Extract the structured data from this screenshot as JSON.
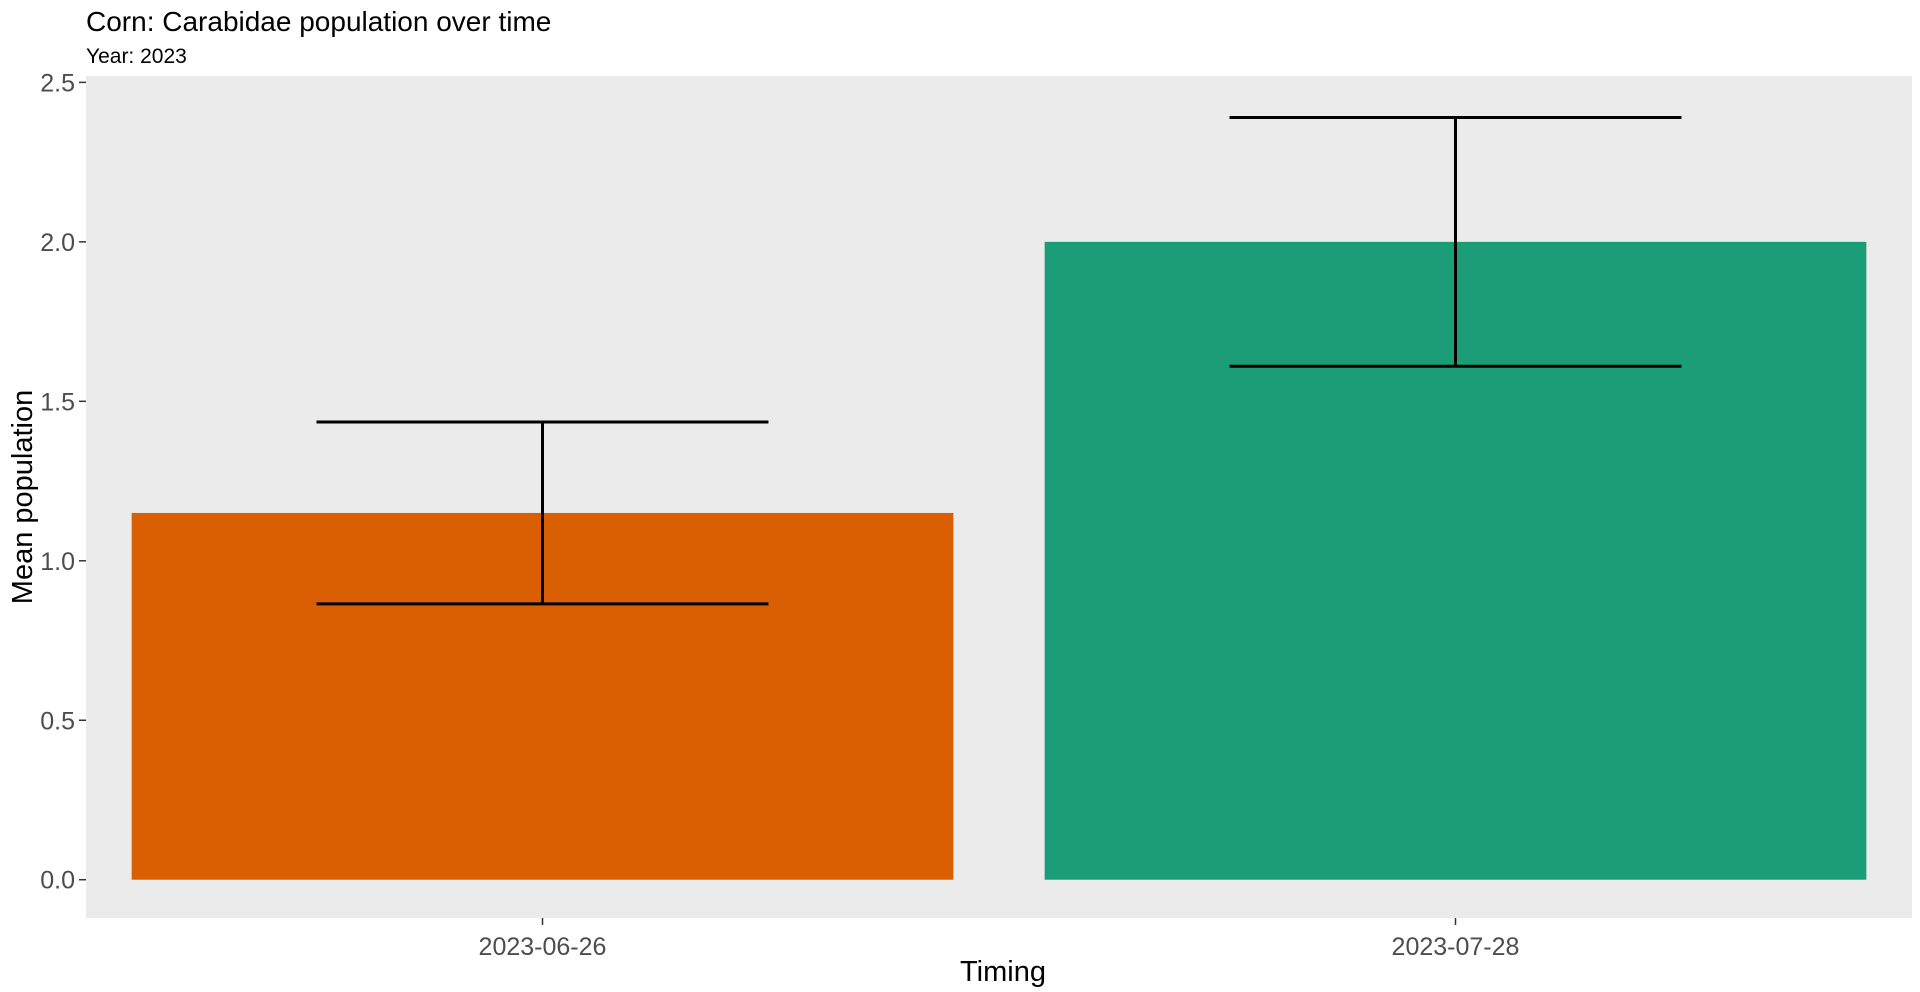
{
  "chart_data": {
    "type": "bar",
    "title": "Corn: Carabidae population over time",
    "subtitle": "Year: 2023",
    "xlabel": "Timing",
    "ylabel": "Mean population",
    "categories": [
      "2023-06-26",
      "2023-07-28"
    ],
    "values": [
      1.15,
      2.0
    ],
    "error_low": [
      0.865,
      1.61
    ],
    "error_high": [
      1.435,
      2.39
    ],
    "bar_colors": [
      "#D95F02",
      "#1B9E77"
    ],
    "ylim": [
      -0.12,
      2.52
    ],
    "yticks": [
      0.0,
      0.5,
      1.0,
      1.5,
      2.0,
      2.5
    ],
    "ytick_labels": [
      "0.0",
      "0.5",
      "1.0",
      "1.5",
      "2.0",
      "2.5"
    ],
    "panel_background": "#EBEBEB",
    "grid": false,
    "legend": "none"
  }
}
